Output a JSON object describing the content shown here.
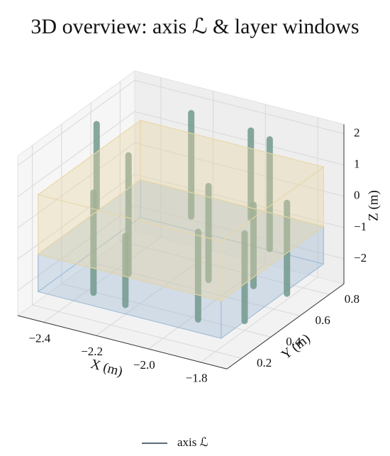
{
  "chart_data": {
    "type": "column3d",
    "title": "3D overview: axis ℒ & layer windows",
    "xlabel": "X (m)",
    "ylabel": "Y (m)",
    "zlabel": "Z (m)",
    "xlim": [
      -2.5,
      -1.7
    ],
    "ylim": [
      0.1,
      0.9
    ],
    "zlim": [
      -2.8,
      2.3
    ],
    "xticks": [
      {
        "value": -2.4,
        "label": "−2.4"
      },
      {
        "value": -2.2,
        "label": "−2.2"
      },
      {
        "value": -2.0,
        "label": "−2.0"
      },
      {
        "value": -1.8,
        "label": "−1.8"
      }
    ],
    "yticks": [
      0.2,
      0.4,
      0.6,
      0.8
    ],
    "zticks": [
      {
        "value": -2,
        "label": "−2"
      },
      {
        "value": -1,
        "label": "−1"
      },
      0,
      1,
      2
    ],
    "grid": true,
    "columns": {
      "color": "#72998c",
      "x": [
        -2.45,
        -2.35,
        -2.3,
        -2.2,
        -2.2,
        -2.05,
        -2.0,
        -1.9,
        -1.95,
        -1.85,
        -1.8,
        -1.75
      ],
      "y": [
        0.55,
        0.35,
        0.5,
        0.3,
        0.75,
        0.6,
        0.8,
        0.75,
        0.35,
        0.55,
        0.4,
        0.6
      ],
      "zmin": [
        -0.8,
        -2.6,
        -2.4,
        -2.5,
        -1.2,
        -2.4,
        -1.0,
        -1.6,
        -2.6,
        -2.0,
        -2.5,
        -2.2
      ],
      "zmax": [
        1.9,
        0.6,
        1.4,
        -0.3,
        2.1,
        0.6,
        1.8,
        1.9,
        0.2,
        0.6,
        0.3,
        0.7
      ]
    },
    "layers": [
      {
        "zlim": [
          -2.1,
          -0.9
        ],
        "color": "#9fbad6"
      },
      {
        "zlim": [
          -0.9,
          1.0
        ],
        "color": "#e8d7a6"
      }
    ],
    "layer_xlim": [
      -2.45,
      -1.75
    ],
    "layer_ylim": [
      0.15,
      0.85
    ],
    "legend": [
      {
        "name": "axis ℒ",
        "color": "#5d6b78"
      }
    ]
  }
}
